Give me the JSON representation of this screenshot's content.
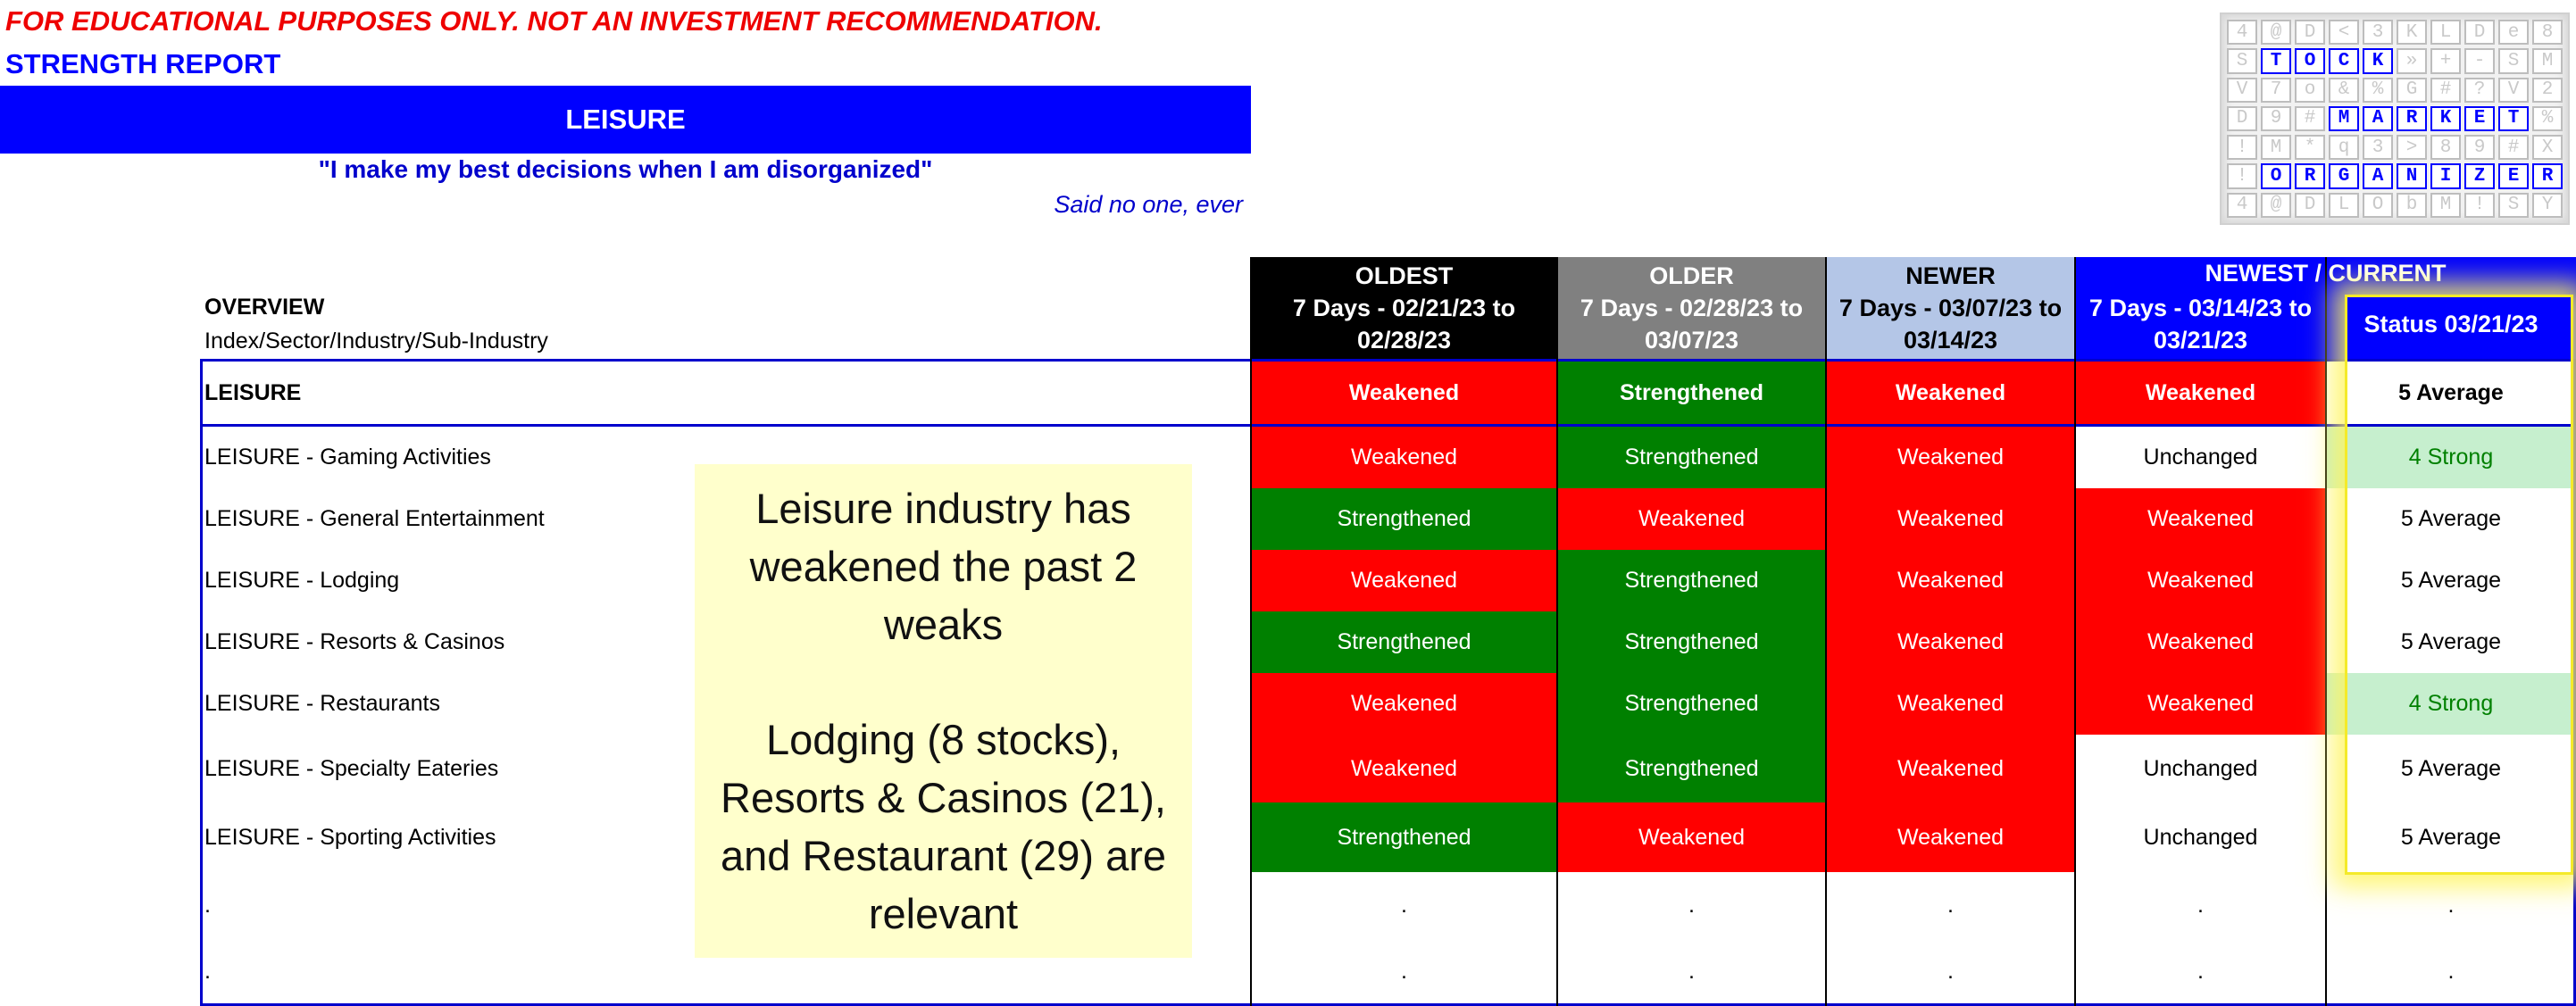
{
  "disclaimer": "FOR EDUCATIONAL PURPOSES ONLY. NOT AN INVESTMENT RECOMMENDATION.",
  "report_title": "STRENGTH REPORT",
  "banner": "LEISURE",
  "quote": "\"I make my best decisions when I am disorganized\"",
  "attribution": "Said no one, ever",
  "logo": {
    "rows": [
      [
        "4",
        "@",
        "D",
        "<",
        "3",
        "K",
        "L",
        "D",
        "e",
        "8"
      ],
      [
        "S",
        "T",
        "O",
        "C",
        "K",
        "»",
        "+",
        "-",
        "S",
        "M"
      ],
      [
        "V",
        "7",
        "o",
        "&",
        "%",
        "G",
        "#",
        "?",
        "V",
        "2"
      ],
      [
        "D",
        "9",
        "#",
        "M",
        "A",
        "R",
        "K",
        "E",
        "T",
        "%"
      ],
      [
        "!",
        "M",
        "*",
        "q",
        "3",
        ">",
        "8",
        "9",
        "#",
        "X"
      ],
      [
        "!",
        "O",
        "R",
        "G",
        "A",
        "N",
        "I",
        "Z",
        "E",
        "R"
      ],
      [
        "4",
        "@",
        "D",
        "L",
        "O",
        "b",
        "M",
        "!",
        "S",
        "Y"
      ]
    ],
    "highlight": {
      "1": [
        1,
        2,
        3,
        4
      ],
      "3": [
        3,
        4,
        5,
        6,
        7,
        8
      ],
      "5": [
        1,
        2,
        3,
        4,
        5,
        6,
        7,
        8,
        9
      ]
    },
    "accent_color": "#0000ff"
  },
  "overview": {
    "label": "OVERVIEW",
    "sublabel": "Index/Sector/Industry/Sub-Industry"
  },
  "headers": {
    "oldest": {
      "title": "OLDEST",
      "range": "7 Days - 02/21/23 to 02/28/23"
    },
    "older": {
      "title": "OLDER",
      "range": "7 Days - 02/28/23 to 03/07/23"
    },
    "newer": {
      "title": "NEWER",
      "range": "7 Days - 03/07/23 to 03/14/23"
    },
    "newest": {
      "title": "NEWEST / CURRENT",
      "range": "7 Days - 03/14/23 to 03/21/23",
      "status": "Status 03/21/23"
    }
  },
  "rows": [
    {
      "label": "LEISURE",
      "bold": true,
      "cells": [
        "Weakened",
        "Strengthened",
        "Weakened",
        "Weakened"
      ],
      "status": "5 Average"
    },
    {
      "label": "LEISURE - Gaming Activities",
      "cells": [
        "Weakened",
        "Strengthened",
        "Weakened",
        "Unchanged"
      ],
      "status": "4 Strong"
    },
    {
      "label": "LEISURE - General Entertainment",
      "cells": [
        "Strengthened",
        "Weakened",
        "Weakened",
        "Weakened"
      ],
      "status": "5 Average"
    },
    {
      "label": "LEISURE - Lodging",
      "cells": [
        "Weakened",
        "Strengthened",
        "Weakened",
        "Weakened"
      ],
      "status": "5 Average"
    },
    {
      "label": "LEISURE - Resorts & Casinos",
      "cells": [
        "Strengthened",
        "Strengthened",
        "Weakened",
        "Weakened"
      ],
      "status": "5 Average"
    },
    {
      "label": "LEISURE - Restaurants",
      "cells": [
        "Weakened",
        "Strengthened",
        "Weakened",
        "Weakened"
      ],
      "status": "4 Strong"
    },
    {
      "label": "LEISURE - Specialty Eateries",
      "cells": [
        "Weakened",
        "Strengthened",
        "Weakened",
        "Unchanged"
      ],
      "status": "5 Average"
    },
    {
      "label": "LEISURE - Sporting Activities",
      "cells": [
        "Strengthened",
        "Weakened",
        "Weakened",
        "Unchanged"
      ],
      "status": "5 Average"
    },
    {
      "label": ".",
      "cells": [
        ".",
        ".",
        ".",
        "."
      ],
      "status": "."
    },
    {
      "label": ".",
      "cells": [
        ".",
        ".",
        ".",
        "."
      ],
      "status": "."
    }
  ],
  "note": {
    "line1": "Leisure industry has",
    "line2": "weakened the past 2",
    "line3": "weaks",
    "line4": "Lodging (8 stocks),",
    "line5": "Resorts & Casinos (21),",
    "line6": "and Restaurant (29) are",
    "line7": "relevant"
  },
  "colors": {
    "weakened": "#ff0000",
    "strengthened": "#008000",
    "unchanged": "#ffffff",
    "strong_status_bg": "#c6efce",
    "accent_blue": "#0000ff"
  }
}
